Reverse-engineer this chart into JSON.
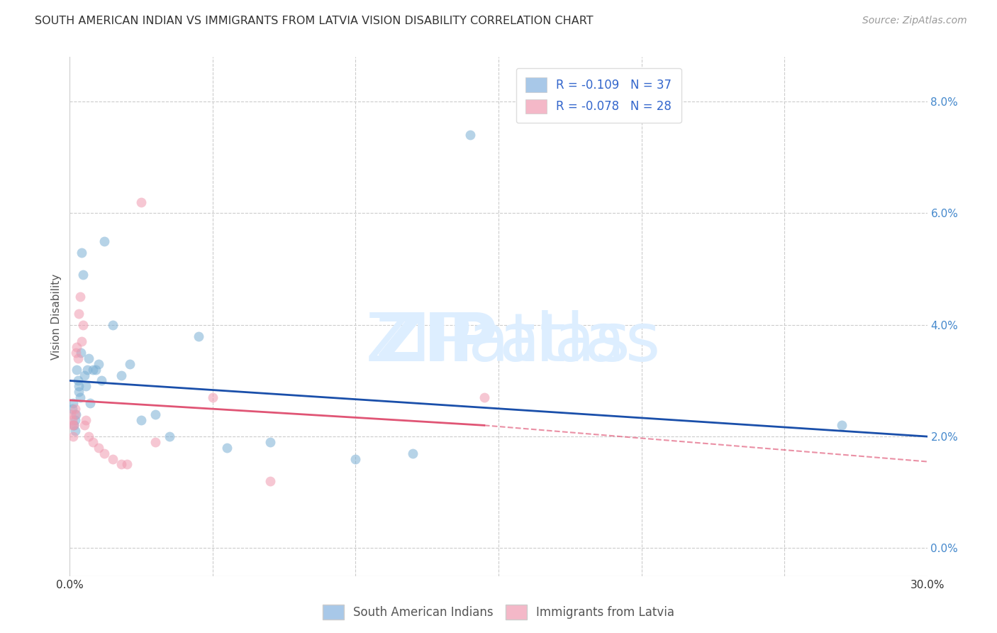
{
  "title": "SOUTH AMERICAN INDIAN VS IMMIGRANTS FROM LATVIA VISION DISABILITY CORRELATION CHART",
  "source": "Source: ZipAtlas.com",
  "ylabel": "Vision Disability",
  "ytick_vals": [
    0.0,
    2.0,
    4.0,
    6.0,
    8.0
  ],
  "xlim": [
    0.0,
    30.0
  ],
  "ylim": [
    -0.5,
    8.8
  ],
  "legend_blue_label": "R = -0.109   N = 37",
  "legend_pink_label": "R = -0.078   N = 28",
  "legend_blue_color": "#a8c8e8",
  "legend_pink_color": "#f4b8c8",
  "scatter_blue_color": "#7bafd4",
  "scatter_pink_color": "#f09ab0",
  "line_blue_color": "#1a4faa",
  "line_pink_color": "#e05575",
  "bottom_legend_blue": "South American Indians",
  "bottom_legend_pink": "Immigrants from Latvia",
  "marker_size": 100,
  "blue_x": [
    0.08,
    0.12,
    0.15,
    0.18,
    0.2,
    0.22,
    0.25,
    0.28,
    0.3,
    0.32,
    0.35,
    0.38,
    0.4,
    0.45,
    0.5,
    0.55,
    0.6,
    0.65,
    0.7,
    0.8,
    0.9,
    1.0,
    1.1,
    1.2,
    1.5,
    1.8,
    2.1,
    2.5,
    3.0,
    3.5,
    4.5,
    5.5,
    7.0,
    10.0,
    12.0,
    14.0,
    27.0
  ],
  "blue_y": [
    2.5,
    2.6,
    2.2,
    2.3,
    2.1,
    2.4,
    3.2,
    3.0,
    2.9,
    2.8,
    2.7,
    3.5,
    5.3,
    4.9,
    3.1,
    2.9,
    3.2,
    3.4,
    2.6,
    3.2,
    3.2,
    3.3,
    3.0,
    5.5,
    4.0,
    3.1,
    3.3,
    2.3,
    2.4,
    2.0,
    3.8,
    1.8,
    1.9,
    1.6,
    1.7,
    7.4,
    2.2
  ],
  "pink_x": [
    0.05,
    0.08,
    0.1,
    0.12,
    0.15,
    0.18,
    0.2,
    0.22,
    0.25,
    0.28,
    0.3,
    0.35,
    0.4,
    0.45,
    0.5,
    0.55,
    0.65,
    0.8,
    1.0,
    1.2,
    1.5,
    1.8,
    2.0,
    2.5,
    3.0,
    5.0,
    7.0,
    14.5
  ],
  "pink_y": [
    2.4,
    2.3,
    2.2,
    2.0,
    2.2,
    2.5,
    2.4,
    3.5,
    3.6,
    3.4,
    4.2,
    4.5,
    3.7,
    4.0,
    2.2,
    2.3,
    2.0,
    1.9,
    1.8,
    1.7,
    1.6,
    1.5,
    1.5,
    6.2,
    1.9,
    2.7,
    1.2,
    2.7
  ],
  "x_tick_positions": [
    0,
    5,
    10,
    15,
    20,
    25,
    30
  ],
  "vertical_grid_x": [
    5,
    10,
    15,
    20,
    25
  ]
}
